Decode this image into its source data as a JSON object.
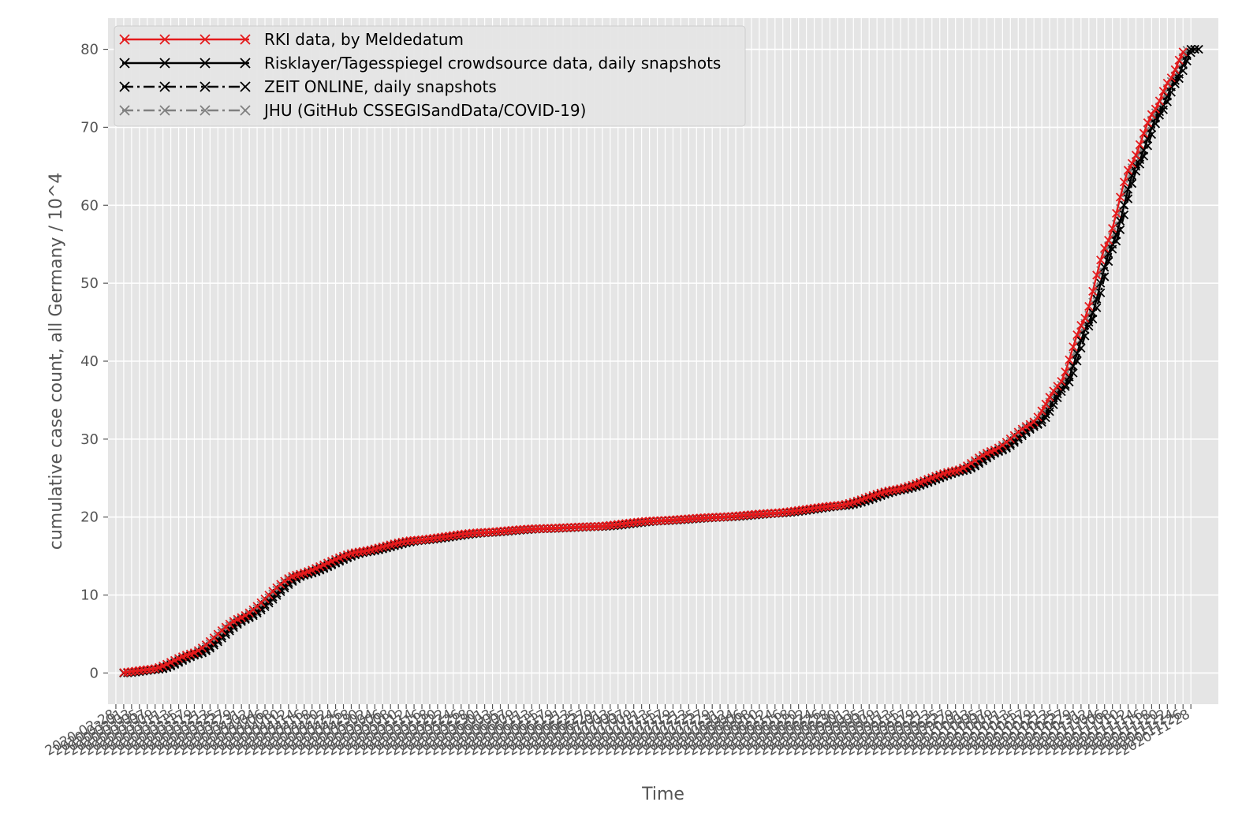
{
  "chart_data": {
    "type": "line",
    "xlabel": "Time",
    "ylabel": "cumulative case count, all Germany / 10^4",
    "ylim": [
      -4,
      84
    ],
    "yticks": [
      0,
      10,
      20,
      30,
      40,
      50,
      60,
      70,
      80
    ],
    "x_start_date": "2020-03-01",
    "x_end_date": "2020-11-30",
    "xlim_dates": [
      "2020-02-26",
      "2020-12-05"
    ],
    "last_tick_label": "2020-11-28",
    "tick_label_prefix": "2020-",
    "grid": true,
    "legend_position": "top-left",
    "anchors": [
      [
        "2020-03-01",
        0
      ],
      [
        "2020-03-10",
        0.5
      ],
      [
        "2020-03-20",
        2.5
      ],
      [
        "2020-04-01",
        7
      ],
      [
        "2020-04-15",
        12.5
      ],
      [
        "2020-05-01",
        15.5
      ],
      [
        "2020-05-15",
        17
      ],
      [
        "2020-06-01",
        18
      ],
      [
        "2020-06-15",
        18.5
      ],
      [
        "2020-07-01",
        18.8
      ],
      [
        "2020-07-15",
        19.5
      ],
      [
        "2020-08-01",
        20
      ],
      [
        "2020-08-15",
        20.5
      ],
      [
        "2020-09-01",
        21.5
      ],
      [
        "2020-09-15",
        23.5
      ],
      [
        "2020-10-01",
        26
      ],
      [
        "2020-10-10",
        28.5
      ],
      [
        "2020-10-20",
        32
      ],
      [
        "2020-10-27",
        37
      ],
      [
        "2020-11-02",
        45
      ],
      [
        "2020-11-08",
        55
      ],
      [
        "2020-11-14",
        65
      ],
      [
        "2020-11-20",
        72
      ],
      [
        "2020-11-24",
        76
      ],
      [
        "2020-11-28",
        80
      ]
    ],
    "series": [
      {
        "name": "RKI data, by Meldedatum",
        "color": "#e41a1c",
        "dash": "solid",
        "day_offset": -1.5,
        "start": "2020-03-01",
        "end": "2020-11-26"
      },
      {
        "name": "Risklayer/Tagesspiegel crowdsource data, daily snapshots",
        "color": "#000000",
        "dash": "solid",
        "day_offset": 0,
        "start": "2020-03-01",
        "end": "2020-11-29"
      },
      {
        "name": "ZEIT ONLINE, daily snapshots",
        "color": "#000000",
        "dash": "dashdot",
        "day_offset": 0.6,
        "start": "2020-03-01",
        "end": "2020-11-30"
      },
      {
        "name": "JHU (GitHub CSSEGISandData/COVID-19)",
        "color": "#808080",
        "dash": "dashdot",
        "day_offset": -0.8,
        "start": "2020-03-01",
        "end": "2020-11-28"
      }
    ]
  }
}
